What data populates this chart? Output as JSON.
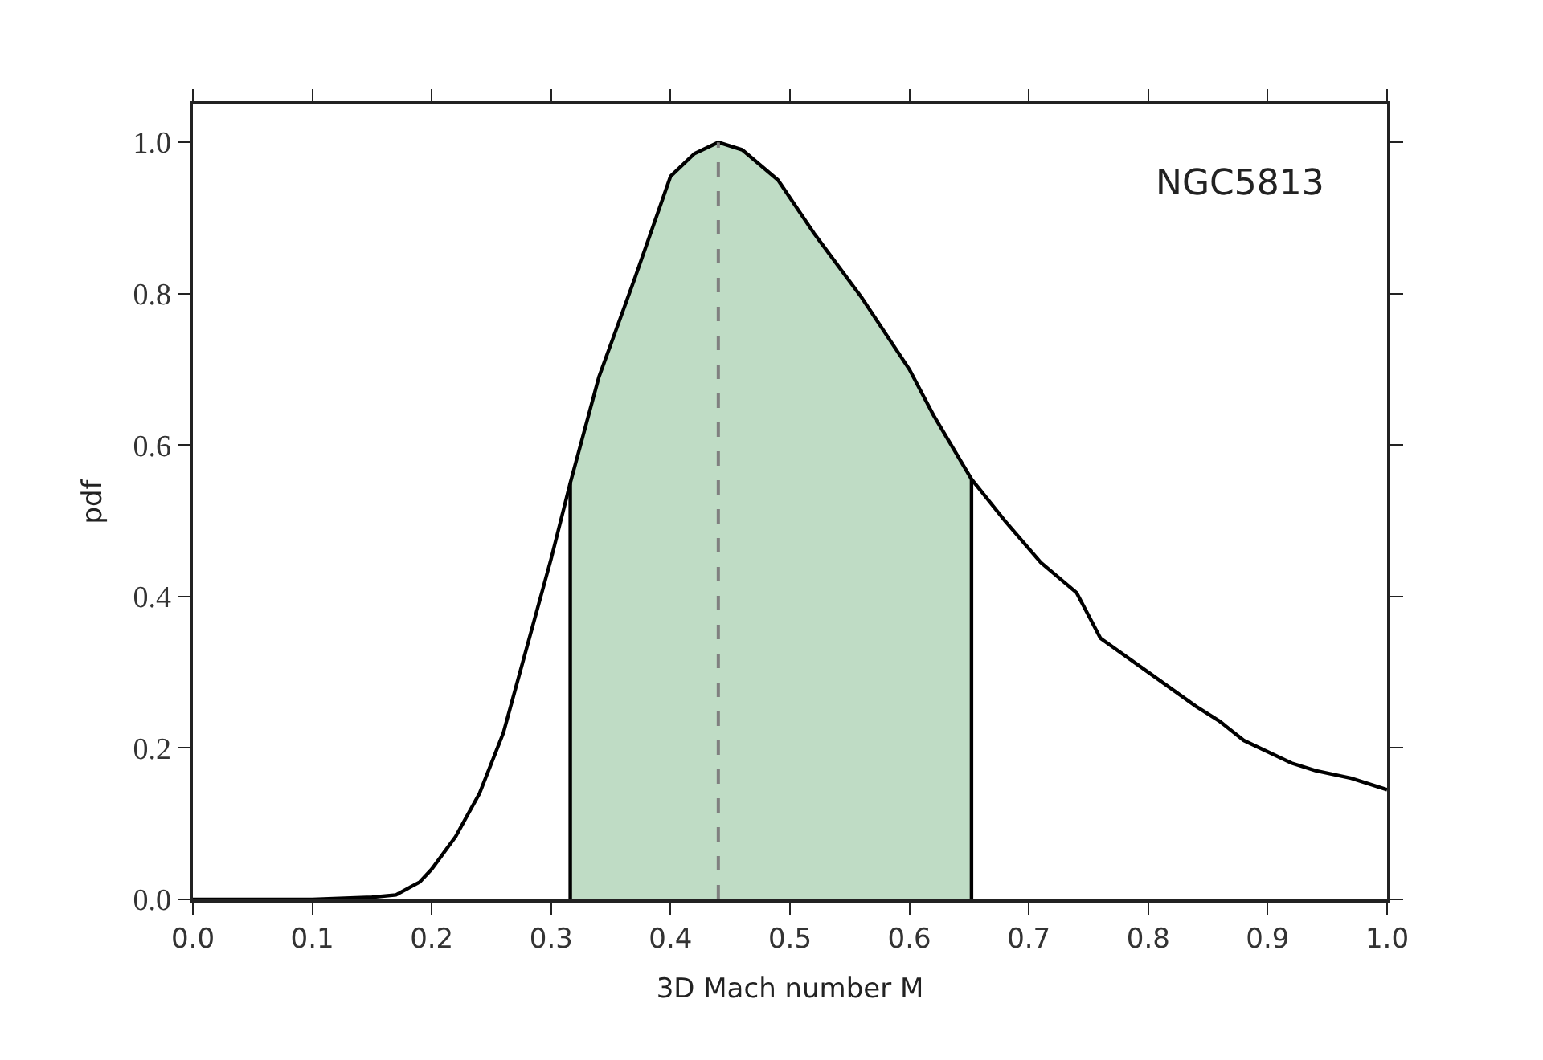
{
  "chart_data": {
    "type": "line",
    "xlabel": "3D Mach number M",
    "ylabel": "pdf",
    "annotations": [
      "NGC5813"
    ],
    "x": [
      0,
      0.1,
      0.15,
      0.17,
      0.19,
      0.2,
      0.22,
      0.24,
      0.26,
      0.28,
      0.3,
      0.316,
      0.34,
      0.37,
      0.4,
      0.42,
      0.44,
      0.46,
      0.49,
      0.52,
      0.56,
      0.6,
      0.62,
      0.652,
      0.68,
      0.71,
      0.74,
      0.76,
      0.8,
      0.84,
      0.86,
      0.88,
      0.92,
      0.94,
      0.97,
      1.0
    ],
    "series": [
      {
        "type": "area",
        "color": "#bfdcc5",
        "x": [
          0.316,
          0.34,
          0.37,
          0.4,
          0.42,
          0.44,
          0.46,
          0.49,
          0.52,
          0.56,
          0.6,
          0.62,
          0.652
        ],
        "values": [
          0.55,
          0.69,
          0.82,
          0.955,
          0.985,
          1.0,
          0.99,
          0.95,
          0.88,
          0.795,
          0.7,
          0.64,
          0.555
        ]
      },
      {
        "color": "#000000",
        "values": [
          0,
          0,
          0.003,
          0.006,
          0.023,
          0.04,
          0.083,
          0.14,
          0.22,
          0.335,
          0.45,
          0.55,
          0.69,
          0.82,
          0.955,
          0.985,
          1.0,
          0.99,
          0.95,
          0.88,
          0.795,
          0.7,
          0.64,
          0.555,
          0.5,
          0.445,
          0.405,
          0.345,
          0.3,
          0.255,
          0.235,
          0.21,
          0.18,
          0.17,
          0.16,
          0.145
        ]
      },
      {
        "color": "#000000",
        "x": [
          0.316,
          0.316
        ],
        "values": [
          0,
          0.55
        ]
      },
      {
        "color": "#000000",
        "x": [
          0.652,
          0.652
        ],
        "values": [
          0,
          0.555
        ]
      }
    ],
    "ref_lines": [
      {
        "axis": "x",
        "value": 0.44,
        "color": "#808080",
        "line_style": "dashed"
      }
    ],
    "xlim": [
      0,
      1
    ],
    "ylim": [
      0,
      1.05
    ],
    "xticks": [
      {
        "value": 0,
        "label": "0.0"
      },
      0.1,
      0.2,
      0.3,
      0.4,
      0.5,
      0.6,
      0.7,
      0.8,
      0.9,
      {
        "value": 1,
        "label": "1.0"
      }
    ],
    "yticks": [
      {
        "value": 0,
        "label": "0.0"
      },
      0.2,
      0.4,
      0.6,
      0.8,
      {
        "value": 1,
        "label": "1.0"
      }
    ],
    "marker": "none",
    "line_style": "solid"
  }
}
